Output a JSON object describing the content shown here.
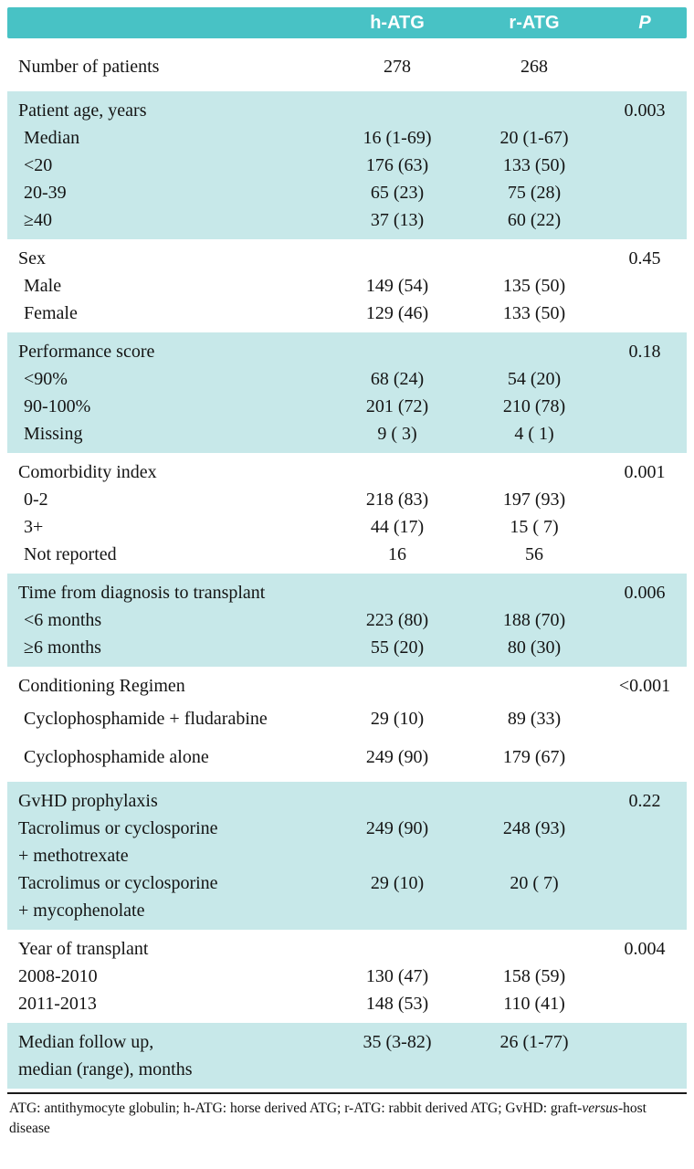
{
  "header": {
    "col_label": "",
    "hatg": "h-ATG",
    "ratg": "r-ATG",
    "p": "P"
  },
  "colors": {
    "header_teal": "#48c2c5",
    "row_teal": "#c7e8e9"
  },
  "table": {
    "sections": [
      {
        "bg": "white",
        "rows": [
          {
            "label": "Number of patients",
            "v1": "278",
            "v2": "268",
            "p": "",
            "head": true,
            "pad": true
          }
        ]
      },
      {
        "bg": "teal",
        "rows": [
          {
            "label": "Patient age, years",
            "v1": "",
            "v2": "",
            "p": "0.003",
            "head": true
          },
          {
            "label": "Median",
            "v1": "16 (1-69)",
            "v2": "20 (1-67)",
            "p": "",
            "indent": true
          },
          {
            "label": "<20",
            "v1": "176 (63)",
            "v2": "133 (50)",
            "p": "",
            "indent": true
          },
          {
            "label": "20-39",
            "v1": "65 (23)",
            "v2": "75 (28)",
            "p": "",
            "indent": true
          },
          {
            "label": "≥40",
            "v1": "37 (13)",
            "v2": "60 (22)",
            "p": "",
            "indent": true
          }
        ]
      },
      {
        "bg": "white",
        "rows": [
          {
            "label": "Sex",
            "v1": "",
            "v2": "",
            "p": "0.45",
            "head": true
          },
          {
            "label": "Male",
            "v1": "149 (54)",
            "v2": "135 (50)",
            "p": "",
            "indent": true
          },
          {
            "label": "Female",
            "v1": "129 (46)",
            "v2": "133 (50)",
            "p": "",
            "indent": true
          }
        ]
      },
      {
        "bg": "teal",
        "rows": [
          {
            "label": "Performance score",
            "v1": "",
            "v2": "",
            "p": "0.18",
            "head": true
          },
          {
            "label": "<90%",
            "v1": "68 (24)",
            "v2": "54 (20)",
            "p": "",
            "indent": true
          },
          {
            "label": "90-100%",
            "v1": "201 (72)",
            "v2": "210 (78)",
            "p": "",
            "indent": true
          },
          {
            "label": "Missing",
            "v1": "9 ( 3)",
            "v2": "4 ( 1)",
            "p": "",
            "indent": true
          }
        ]
      },
      {
        "bg": "white",
        "rows": [
          {
            "label": "Comorbidity index",
            "v1": "",
            "v2": "",
            "p": "0.001",
            "head": true
          },
          {
            "label": "0-2",
            "v1": "218 (83)",
            "v2": "197 (93)",
            "p": "",
            "indent": true
          },
          {
            "label": "3+",
            "v1": "44 (17)",
            "v2": "15 ( 7)",
            "p": "",
            "indent": true
          },
          {
            "label": "Not reported",
            "v1": "16",
            "v2": "56",
            "p": "",
            "indent": true
          }
        ]
      },
      {
        "bg": "teal",
        "rows": [
          {
            "label": "Time from diagnosis to transplant",
            "v1": "",
            "v2": "",
            "p": "0.006",
            "head": true
          },
          {
            "label": "<6 months",
            "v1": "223 (80)",
            "v2": "188 (70)",
            "p": "",
            "indent": true
          },
          {
            "label": "≥6 months",
            "v1": "55 (20)",
            "v2": "80 (30)",
            "p": "",
            "indent": true
          }
        ]
      },
      {
        "bg": "white",
        "rows": [
          {
            "label": "Conditioning Regimen",
            "v1": "",
            "v2": "",
            "p": "<0.001",
            "head": true
          },
          {
            "label": "Cyclophosphamide + fludarabine",
            "v1": "29 (10)",
            "v2": "89 (33)",
            "p": "",
            "indent": true,
            "tall": true
          },
          {
            "label": "Cyclophosphamide alone",
            "v1": "249 (90)",
            "v2": "179 (67)",
            "p": "",
            "indent": true,
            "tall": true
          }
        ]
      },
      {
        "bg": "teal",
        "rows": [
          {
            "label": "GvHD prophylaxis",
            "v1": "",
            "v2": "",
            "p": "0.22",
            "head": true
          },
          {
            "label": "Tacrolimus or cyclosporine",
            "label2": "+ methotrexate",
            "v1": "249 (90)",
            "v2": "248 (93)",
            "p": ""
          },
          {
            "label": "Tacrolimus or cyclosporine",
            "label2": "+ mycophenolate",
            "v1": "29 (10)",
            "v2": "20 ( 7)",
            "p": ""
          }
        ]
      },
      {
        "bg": "white",
        "rows": [
          {
            "label": "Year of transplant",
            "v1": "",
            "v2": "",
            "p": "0.004",
            "head": true
          },
          {
            "label": "2008-2010",
            "v1": "130 (47)",
            "v2": "158 (59)",
            "p": ""
          },
          {
            "label": "2011-2013",
            "v1": "148 (53)",
            "v2": "110 (41)",
            "p": ""
          }
        ]
      },
      {
        "bg": "teal",
        "rows": [
          {
            "label": "Median follow up,",
            "label2": "median (range), months",
            "v1": "35 (3-82)",
            "v2": "26 (1-77)",
            "p": "",
            "head": true
          }
        ]
      }
    ]
  },
  "footnote": {
    "part1": "ATG: antithymocyte globulin; h-ATG: horse derived ATG; r-ATG: rabbit derived ATG; GvHD: graft-",
    "italic": "versus",
    "part2": "-host disease"
  }
}
